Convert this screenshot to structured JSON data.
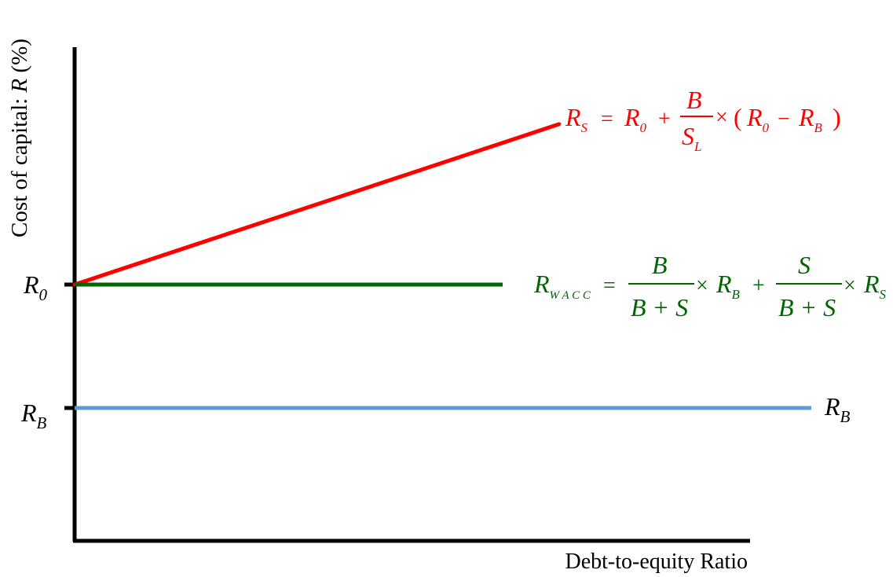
{
  "chart_data": {
    "type": "line",
    "title": "",
    "xlabel": "Debt-to-equity Ratio",
    "ylabel": {
      "prefix": "Cost of capital: ",
      "symbol": "R",
      "suffix": " (%)"
    },
    "xlim": [
      0,
      10
    ],
    "ylim": [
      0,
      10
    ],
    "grid": false,
    "y_ticks": [
      {
        "name": "r0",
        "base": "R",
        "sub": "0",
        "value": 5
      },
      {
        "name": "rb",
        "base": "R",
        "sub": "B",
        "value": 2
      }
    ],
    "series": [
      {
        "name": "R_S",
        "color": "#ff0000",
        "x": [
          0,
          7.3
        ],
        "y": [
          5,
          8.9
        ],
        "formula": {
          "lhs": {
            "base": "R",
            "sub": "S"
          },
          "eq": "=",
          "t1": {
            "base": "R",
            "sub": "0"
          },
          "plus": "+",
          "frac_num": "B",
          "frac_den": {
            "base": "S",
            "sub": "L"
          },
          "times": "×",
          "lparen": "(",
          "t2": {
            "base": "R",
            "sub": "0"
          },
          "minus": "−",
          "t3": {
            "base": "R",
            "sub": "B"
          },
          "rparen": ")"
        }
      },
      {
        "name": "R_WACC",
        "color": "#006400",
        "x": [
          0,
          6.45
        ],
        "y": [
          5,
          5
        ],
        "formula": {
          "lhs": {
            "base": "R",
            "sub": "W A C C"
          },
          "eq": "=",
          "frac1_num": "B",
          "frac1_den": "B + S",
          "times1": "×",
          "t1": {
            "base": "R",
            "sub": "B"
          },
          "plus": "+",
          "frac2_num": "S",
          "frac2_den": "B + S",
          "times2": "×",
          "t2": {
            "base": "R",
            "sub": "S"
          }
        }
      },
      {
        "name": "R_B",
        "color": "#5b9bd5",
        "x": [
          0,
          11.1
        ],
        "y": [
          2,
          2
        ],
        "label": {
          "base": "R",
          "sub": "B"
        }
      }
    ]
  }
}
